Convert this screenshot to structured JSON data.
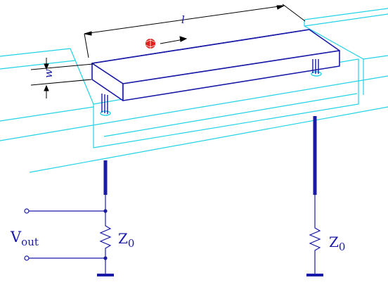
{
  "labels": {
    "length": "l",
    "width": "w",
    "output_voltage_main": "V",
    "output_voltage_sub": "out",
    "impedance_left_main": "Z",
    "impedance_left_sub": "0",
    "impedance_right_main": "Z",
    "impedance_right_sub": "0"
  },
  "colors": {
    "substrate": "#22d3e6",
    "beam": "#1a1aa8",
    "dimension": "#000000",
    "particle": "#e0201c"
  },
  "icons": {
    "particle": "electron-ball-icon",
    "motion": "arrow-right-icon"
  }
}
